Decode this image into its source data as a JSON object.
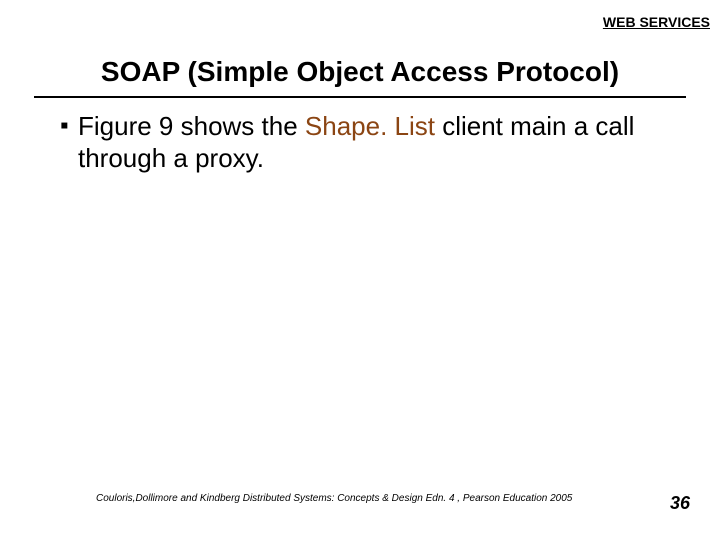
{
  "header": {
    "label": "WEB SERVICES"
  },
  "title": {
    "text": "SOAP (Simple Object Access Protocol)"
  },
  "body": {
    "bullet": {
      "marker": "▪",
      "pre": "Figure 9 shows the ",
      "highlight": "Shape. List",
      "post": " client main a call through a proxy."
    }
  },
  "footer": {
    "citation": "Couloris,Dollimore and Kindberg  Distributed Systems: Concepts & Design  Edn. 4 , Pearson Education 2005",
    "page": "36"
  },
  "colors": {
    "highlight": "#8b4513",
    "text": "#000000",
    "background": "#ffffff"
  }
}
